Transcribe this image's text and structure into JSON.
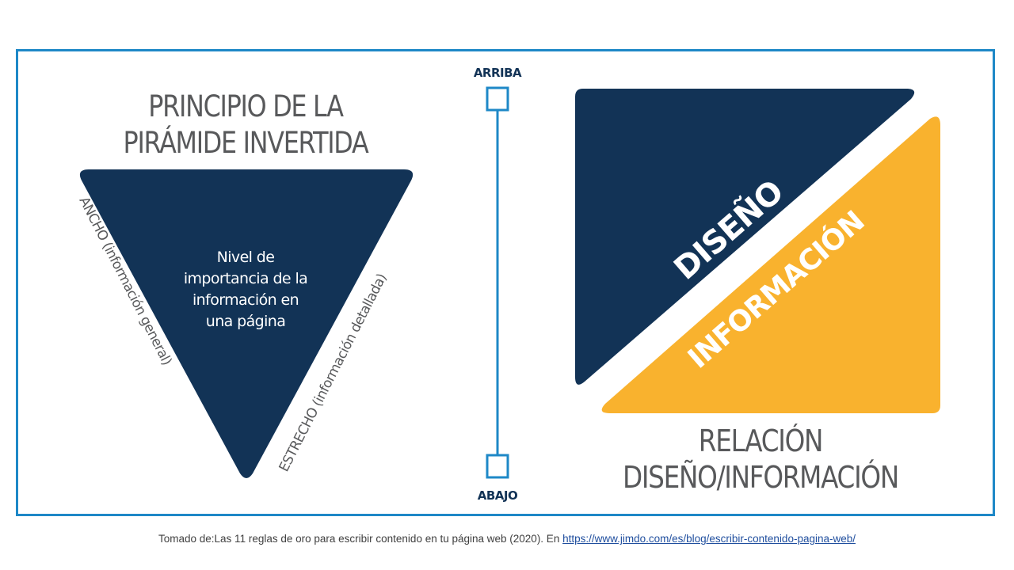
{
  "left_diagram": {
    "title_lines": [
      "PRINCIPIO DE LA",
      "PIRÁMIDE INVERTIDA"
    ],
    "center_text_lines": [
      "Nivel de",
      "importancia de la",
      "información en",
      "una página"
    ],
    "side_left_label": "ANCHO (información general)",
    "side_right_label": "ESTRECHO (información detallada)"
  },
  "scale": {
    "top_label": "ARRIBA",
    "bottom_label": "ABAJO"
  },
  "right_diagram": {
    "upper_triangle_label": "DISEÑO",
    "lower_triangle_label": "INFORMACIÓN",
    "title_lines": [
      "RELACIÓN",
      "DISEÑO/INFORMACIÓN"
    ]
  },
  "caption": {
    "text": "Tomado de:Las 11 reglas de oro para escribir contenido en tu página web (2020). En ",
    "link_text": "https://www.jimdo.com/es/blog/escribir-contenido-pagina-web/"
  },
  "colors": {
    "navy": "#123356",
    "gold": "#f9b22e",
    "frame_blue": "#1e88c7",
    "gray_text": "#58595b"
  }
}
